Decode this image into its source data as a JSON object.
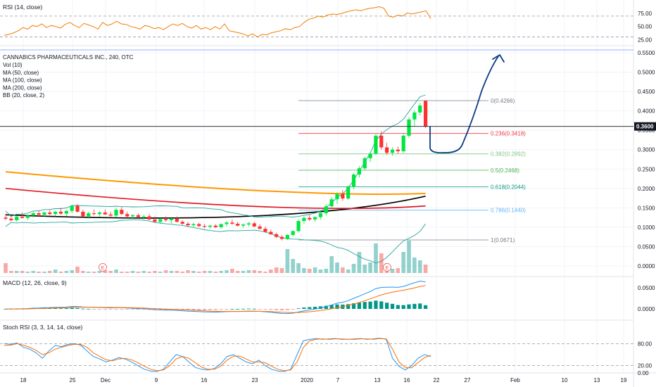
{
  "chart_data": {
    "type": "candlestick",
    "symbol_title": "CANNABICS PHARMACEUTICALS INC., 240, OTC",
    "indicators": [
      "Vol (10)",
      "MA (50, close)",
      "MA (100, close)",
      "MA (200, close)",
      "BB (20, close, 2)"
    ],
    "price_axis": {
      "ticks": [
        "0.5500",
        "0.5000",
        "0.4500",
        "0.4000",
        "0.3500",
        "0.3000",
        "0.2500",
        "0.2000",
        "0.1500",
        "0.1000",
        "0.0500",
        "0.0000"
      ],
      "current": "0.3600",
      "ylim": [
        0,
        0.55
      ]
    },
    "time_axis": {
      "ticks": [
        "18",
        "25",
        "Dec",
        "9",
        "16",
        "23",
        "2020",
        "7",
        "13",
        "16",
        "22",
        "27",
        "Feb",
        "10",
        "13",
        "19"
      ]
    },
    "fib_levels": [
      {
        "label": "0(0.4266)",
        "value": 0.4266,
        "color": "#787b86"
      },
      {
        "label": "0.236(0.3418)",
        "value": 0.3418,
        "color": "#f23645"
      },
      {
        "label": "0.382(0.2892)",
        "value": 0.2892,
        "color": "#81c784"
      },
      {
        "label": "0.5(0.2468)",
        "value": 0.2468,
        "color": "#4caf50"
      },
      {
        "label": "0.618(0.2044)",
        "value": 0.2044,
        "color": "#089981"
      },
      {
        "label": "0.786(0.1440)",
        "value": 0.144,
        "color": "#64b5f6"
      },
      {
        "label": "1(0.0671)",
        "value": 0.0671,
        "color": "#787b86"
      }
    ],
    "candles": [
      {
        "o": 0.125,
        "h": 0.135,
        "l": 0.118,
        "c": 0.122
      },
      {
        "o": 0.122,
        "h": 0.128,
        "l": 0.115,
        "c": 0.118
      },
      {
        "o": 0.118,
        "h": 0.13,
        "l": 0.114,
        "c": 0.127
      },
      {
        "o": 0.127,
        "h": 0.138,
        "l": 0.122,
        "c": 0.124
      },
      {
        "o": 0.124,
        "h": 0.132,
        "l": 0.119,
        "c": 0.13
      },
      {
        "o": 0.13,
        "h": 0.14,
        "l": 0.125,
        "c": 0.136
      },
      {
        "o": 0.136,
        "h": 0.142,
        "l": 0.128,
        "c": 0.132
      },
      {
        "o": 0.132,
        "h": 0.14,
        "l": 0.126,
        "c": 0.138
      },
      {
        "o": 0.138,
        "h": 0.146,
        "l": 0.131,
        "c": 0.134
      },
      {
        "o": 0.134,
        "h": 0.142,
        "l": 0.128,
        "c": 0.14
      },
      {
        "o": 0.14,
        "h": 0.15,
        "l": 0.132,
        "c": 0.135
      },
      {
        "o": 0.135,
        "h": 0.144,
        "l": 0.128,
        "c": 0.142
      },
      {
        "o": 0.142,
        "h": 0.158,
        "l": 0.136,
        "c": 0.155
      },
      {
        "o": 0.155,
        "h": 0.16,
        "l": 0.138,
        "c": 0.14
      },
      {
        "o": 0.14,
        "h": 0.146,
        "l": 0.126,
        "c": 0.128
      },
      {
        "o": 0.128,
        "h": 0.14,
        "l": 0.122,
        "c": 0.136
      },
      {
        "o": 0.136,
        "h": 0.146,
        "l": 0.13,
        "c": 0.134
      },
      {
        "o": 0.134,
        "h": 0.142,
        "l": 0.126,
        "c": 0.138
      },
      {
        "o": 0.138,
        "h": 0.146,
        "l": 0.132,
        "c": 0.133
      },
      {
        "o": 0.133,
        "h": 0.14,
        "l": 0.127,
        "c": 0.13
      },
      {
        "o": 0.13,
        "h": 0.15,
        "l": 0.126,
        "c": 0.145
      },
      {
        "o": 0.145,
        "h": 0.152,
        "l": 0.132,
        "c": 0.134
      },
      {
        "o": 0.134,
        "h": 0.14,
        "l": 0.126,
        "c": 0.128
      },
      {
        "o": 0.128,
        "h": 0.134,
        "l": 0.122,
        "c": 0.131
      },
      {
        "o": 0.131,
        "h": 0.136,
        "l": 0.124,
        "c": 0.126
      },
      {
        "o": 0.126,
        "h": 0.132,
        "l": 0.12,
        "c": 0.128
      },
      {
        "o": 0.128,
        "h": 0.134,
        "l": 0.118,
        "c": 0.12
      },
      {
        "o": 0.12,
        "h": 0.128,
        "l": 0.112,
        "c": 0.114
      },
      {
        "o": 0.114,
        "h": 0.124,
        "l": 0.108,
        "c": 0.121
      },
      {
        "o": 0.121,
        "h": 0.128,
        "l": 0.114,
        "c": 0.118
      },
      {
        "o": 0.118,
        "h": 0.124,
        "l": 0.11,
        "c": 0.122
      },
      {
        "o": 0.122,
        "h": 0.128,
        "l": 0.112,
        "c": 0.114
      },
      {
        "o": 0.114,
        "h": 0.118,
        "l": 0.106,
        "c": 0.109
      },
      {
        "o": 0.109,
        "h": 0.114,
        "l": 0.102,
        "c": 0.105
      },
      {
        "o": 0.105,
        "h": 0.112,
        "l": 0.1,
        "c": 0.108
      },
      {
        "o": 0.108,
        "h": 0.112,
        "l": 0.1,
        "c": 0.103
      },
      {
        "o": 0.103,
        "h": 0.108,
        "l": 0.097,
        "c": 0.101
      },
      {
        "o": 0.101,
        "h": 0.106,
        "l": 0.096,
        "c": 0.104
      },
      {
        "o": 0.104,
        "h": 0.108,
        "l": 0.098,
        "c": 0.1
      },
      {
        "o": 0.1,
        "h": 0.11,
        "l": 0.096,
        "c": 0.108
      },
      {
        "o": 0.108,
        "h": 0.116,
        "l": 0.102,
        "c": 0.112
      },
      {
        "o": 0.112,
        "h": 0.12,
        "l": 0.106,
        "c": 0.109
      },
      {
        "o": 0.109,
        "h": 0.114,
        "l": 0.102,
        "c": 0.104
      },
      {
        "o": 0.104,
        "h": 0.11,
        "l": 0.098,
        "c": 0.107
      },
      {
        "o": 0.107,
        "h": 0.114,
        "l": 0.102,
        "c": 0.11
      },
      {
        "o": 0.11,
        "h": 0.114,
        "l": 0.1,
        "c": 0.102
      },
      {
        "o": 0.102,
        "h": 0.108,
        "l": 0.094,
        "c": 0.096
      },
      {
        "o": 0.096,
        "h": 0.102,
        "l": 0.086,
        "c": 0.088
      },
      {
        "o": 0.088,
        "h": 0.094,
        "l": 0.08,
        "c": 0.082
      },
      {
        "o": 0.082,
        "h": 0.086,
        "l": 0.072,
        "c": 0.075
      },
      {
        "o": 0.075,
        "h": 0.08,
        "l": 0.066,
        "c": 0.07
      },
      {
        "o": 0.07,
        "h": 0.082,
        "l": 0.067,
        "c": 0.08
      },
      {
        "o": 0.08,
        "h": 0.092,
        "l": 0.076,
        "c": 0.09
      },
      {
        "o": 0.09,
        "h": 0.12,
        "l": 0.086,
        "c": 0.116
      },
      {
        "o": 0.116,
        "h": 0.128,
        "l": 0.108,
        "c": 0.124
      },
      {
        "o": 0.124,
        "h": 0.132,
        "l": 0.116,
        "c": 0.12
      },
      {
        "o": 0.12,
        "h": 0.128,
        "l": 0.114,
        "c": 0.126
      },
      {
        "o": 0.126,
        "h": 0.14,
        "l": 0.12,
        "c": 0.136
      },
      {
        "o": 0.136,
        "h": 0.16,
        "l": 0.13,
        "c": 0.154
      },
      {
        "o": 0.154,
        "h": 0.178,
        "l": 0.148,
        "c": 0.172
      },
      {
        "o": 0.172,
        "h": 0.19,
        "l": 0.16,
        "c": 0.186
      },
      {
        "o": 0.186,
        "h": 0.196,
        "l": 0.168,
        "c": 0.174
      },
      {
        "o": 0.174,
        "h": 0.208,
        "l": 0.17,
        "c": 0.204
      },
      {
        "o": 0.204,
        "h": 0.24,
        "l": 0.198,
        "c": 0.236
      },
      {
        "o": 0.236,
        "h": 0.258,
        "l": 0.228,
        "c": 0.252
      },
      {
        "o": 0.252,
        "h": 0.282,
        "l": 0.246,
        "c": 0.278
      },
      {
        "o": 0.278,
        "h": 0.294,
        "l": 0.268,
        "c": 0.29
      },
      {
        "o": 0.29,
        "h": 0.34,
        "l": 0.286,
        "c": 0.336
      },
      {
        "o": 0.336,
        "h": 0.348,
        "l": 0.3,
        "c": 0.306
      },
      {
        "o": 0.306,
        "h": 0.318,
        "l": 0.286,
        "c": 0.292
      },
      {
        "o": 0.292,
        "h": 0.306,
        "l": 0.284,
        "c": 0.3
      },
      {
        "o": 0.3,
        "h": 0.308,
        "l": 0.29,
        "c": 0.296
      },
      {
        "o": 0.296,
        "h": 0.34,
        "l": 0.292,
        "c": 0.336
      },
      {
        "o": 0.336,
        "h": 0.384,
        "l": 0.33,
        "c": 0.378
      },
      {
        "o": 0.378,
        "h": 0.402,
        "l": 0.36,
        "c": 0.396
      },
      {
        "o": 0.396,
        "h": 0.42,
        "l": 0.388,
        "c": 0.414
      },
      {
        "o": 0.426,
        "h": 0.428,
        "l": 0.356,
        "c": 0.36
      }
    ],
    "volume": [
      14,
      3,
      3,
      3,
      2,
      3,
      2,
      2,
      3,
      5,
      2,
      3,
      4,
      9,
      3,
      2,
      2,
      3,
      4,
      3,
      5,
      2,
      2,
      3,
      2,
      3,
      2,
      3,
      2,
      4,
      3,
      3,
      2,
      4,
      3,
      2,
      3,
      3,
      2,
      3,
      4,
      6,
      3,
      3,
      4,
      4,
      3,
      2,
      5,
      8,
      7,
      34,
      20,
      14,
      7,
      6,
      8,
      5,
      6,
      24,
      15,
      8,
      5,
      13,
      30,
      12,
      15,
      42,
      28,
      14,
      6,
      7,
      30,
      46,
      22,
      18,
      12
    ],
    "moving_averages": [
      {
        "name": "MA (50, close)",
        "color": "#000000",
        "from": 0.132,
        "mid": 0.112,
        "to": 0.18
      },
      {
        "name": "MA (100, close)",
        "color": "#e31b23",
        "from": 0.2,
        "mid": 0.14,
        "to": 0.155
      },
      {
        "name": "MA (200, close)",
        "color": "#ff9800",
        "from": 0.243,
        "mid": 0.185,
        "to": 0.187
      }
    ],
    "rsi": {
      "title": "RSI (14, close)",
      "ticks": [
        "75.00",
        "50.00",
        "25.00"
      ],
      "levels": [
        70,
        30
      ],
      "values": [
        33,
        35,
        38,
        42,
        48,
        45,
        52,
        50,
        55,
        48,
        52,
        50,
        47,
        54,
        58,
        52,
        48,
        56,
        53,
        50,
        45,
        58,
        52,
        55,
        60,
        55,
        54,
        50,
        48,
        45,
        52,
        50,
        46,
        48,
        44,
        50,
        55,
        52,
        56,
        50,
        47,
        52,
        45,
        48,
        44,
        50,
        45,
        55,
        42,
        40,
        38,
        36,
        32,
        36,
        30,
        35,
        34,
        38,
        40,
        42,
        46,
        44,
        48,
        50,
        58,
        64,
        66,
        70,
        68,
        72,
        74,
        73,
        75,
        78,
        80,
        82,
        80,
        83,
        85,
        86,
        88,
        85,
        70,
        68,
        72,
        70,
        76,
        74,
        76,
        78,
        80,
        65
      ]
    },
    "macd": {
      "title": "MACD (12, 26, close, 9)",
      "ticks": [
        "0.0500",
        "0.0000"
      ]
    },
    "stoch_rsi": {
      "title": "Stoch RSI (3, 3, 14, 14, close)",
      "ticks": [
        "80.00",
        "20.00",
        "0.00"
      ],
      "levels": [
        80,
        20
      ],
      "k": [
        80,
        78,
        82,
        70,
        65,
        55,
        40,
        60,
        75,
        72,
        78,
        80,
        76,
        60,
        45,
        38,
        30,
        35,
        42,
        38,
        30,
        20,
        10,
        5,
        4,
        10,
        30,
        50,
        45,
        30,
        15,
        10,
        8,
        12,
        25,
        45,
        50,
        40,
        30,
        25,
        35,
        20,
        10,
        5,
        4,
        10,
        50,
        88,
        92,
        94,
        92,
        93,
        94,
        92,
        92,
        93,
        94,
        92,
        93,
        95,
        92,
        40,
        18,
        8,
        20,
        40,
        50,
        45
      ],
      "d": [
        75,
        76,
        80,
        76,
        70,
        62,
        50,
        55,
        65,
        70,
        75,
        78,
        78,
        70,
        55,
        45,
        36,
        33,
        38,
        40,
        36,
        28,
        18,
        10,
        6,
        8,
        20,
        38,
        45,
        40,
        28,
        16,
        10,
        10,
        18,
        35,
        46,
        46,
        38,
        30,
        30,
        28,
        18,
        10,
        6,
        8,
        30,
        70,
        88,
        92,
        93,
        92,
        93,
        93,
        92,
        92,
        93,
        93,
        92,
        94,
        93,
        65,
        30,
        15,
        14,
        28,
        42,
        48
      ]
    }
  }
}
